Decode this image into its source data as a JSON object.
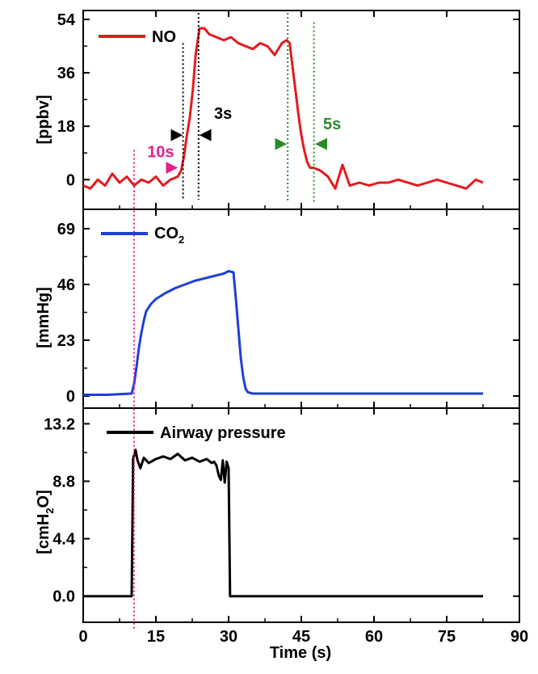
{
  "chart_data": {
    "type": "line",
    "shared_x": {
      "label": "Time (s)",
      "range": [
        0,
        90
      ],
      "ticks": [
        0,
        15,
        30,
        45,
        60,
        75,
        90
      ]
    },
    "panels": [
      {
        "id": "no",
        "ylabel": "[ppbv]",
        "ylim": [
          -10,
          57
        ],
        "yticks": [
          0,
          18,
          36,
          54
        ],
        "ytick_labels": [
          "0",
          "18",
          "36",
          "54"
        ],
        "series": {
          "name": "NO",
          "color": "#e41a1c",
          "x": [
            0,
            1.5,
            3,
            4.5,
            6,
            7.5,
            9,
            10.5,
            12,
            13.5,
            15,
            16.5,
            18,
            19.5,
            20.2,
            20.8,
            21.4,
            22,
            22.6,
            23.2,
            24,
            25,
            26,
            27.5,
            29,
            30.5,
            32,
            33.5,
            35,
            36.5,
            38,
            39.5,
            41,
            42,
            42.6,
            43.2,
            43.8,
            44.4,
            45,
            45.6,
            46.2,
            46.8,
            47.5,
            49,
            50.5,
            52,
            53.5,
            55,
            57,
            59,
            61,
            63,
            65,
            67,
            69,
            71,
            73,
            75,
            77,
            79,
            81,
            82.5
          ],
          "y": [
            -2,
            -3,
            0,
            -2,
            2,
            -1,
            1,
            -2,
            0,
            -1,
            1,
            -2,
            0,
            1,
            3,
            8,
            15,
            21,
            30,
            42,
            51,
            51,
            49,
            48,
            47,
            48,
            46,
            45,
            44,
            46,
            45,
            42,
            46,
            47,
            46,
            38,
            30,
            22,
            15,
            10,
            6,
            4,
            4,
            3,
            1,
            -3,
            5,
            -2,
            -1,
            -2,
            -1,
            -1,
            0,
            -1,
            -2,
            -1,
            0,
            -1,
            -2,
            -3,
            0,
            -1
          ]
        },
        "annotations": [
          {
            "text": "10s",
            "color": "#e91e8c"
          },
          {
            "text": "3s",
            "color": "#000000"
          },
          {
            "text": "5s",
            "color": "#2a8a2a"
          }
        ]
      },
      {
        "id": "co2",
        "ylabel": "[mmHg]",
        "ylim": [
          -5,
          77
        ],
        "yticks": [
          0,
          23,
          46,
          69
        ],
        "ytick_labels": [
          "0",
          "23",
          "46",
          "69"
        ],
        "series": {
          "name": "CO2",
          "color": "#1f3fd6",
          "x": [
            0,
            5,
            10,
            10.5,
            11,
            11.5,
            12,
            12.5,
            13,
            14,
            15,
            17,
            19,
            21,
            23,
            25,
            27,
            29,
            30,
            31,
            31.5,
            32,
            32.5,
            33,
            33.5,
            34,
            35,
            40,
            50,
            60,
            70,
            80,
            82.5
          ],
          "y": [
            0.5,
            0.5,
            1,
            5,
            12,
            20,
            26,
            31,
            35,
            38,
            40,
            42.5,
            44.5,
            46,
            47.5,
            48.5,
            49.5,
            50.5,
            51.5,
            51,
            40,
            28,
            16,
            8,
            3,
            1.5,
            1,
            1,
            1,
            1,
            1,
            1,
            1
          ]
        }
      },
      {
        "id": "airway",
        "ylabel": "[cmH2O]",
        "ylim": [
          -2,
          14.4
        ],
        "yticks": [
          0,
          4.4,
          8.8,
          13.2
        ],
        "ytick_labels": [
          "0.0",
          "4.4",
          "8.8",
          "13.2"
        ],
        "series": {
          "name": "Airway pressure",
          "color": "#000000",
          "x": [
            0,
            5,
            9.5,
            10,
            10.3,
            10.8,
            11.2,
            11.8,
            12.5,
            13.5,
            15,
            16.5,
            18,
            19.5,
            21,
            22.5,
            24,
            25.5,
            26.5,
            27,
            27.5,
            28,
            28.4,
            28.8,
            29.2,
            29.6,
            30,
            30.3,
            31,
            40,
            50,
            60,
            70,
            80,
            82.5
          ],
          "y": [
            0,
            0,
            0,
            0,
            10.5,
            11.2,
            10.4,
            9.8,
            10.6,
            10.2,
            10.5,
            10.7,
            10.5,
            10.9,
            10.4,
            10.6,
            10.3,
            10.5,
            10.2,
            10.3,
            10.0,
            9.2,
            8.9,
            10.4,
            8.7,
            10.3,
            9.8,
            0,
            0,
            0,
            0,
            0,
            0,
            0,
            0
          ]
        }
      }
    ]
  },
  "legend": {
    "no_label": "NO",
    "co2_label_main": "CO",
    "co2_label_sub": "2",
    "airway_label": "Airway pressure"
  },
  "axes": {
    "co2_ylabel": "[mmHg]",
    "no_ylabel": "[ppbv]",
    "airway_ylabel_pre": "[cmH",
    "airway_ylabel_sub": "2",
    "airway_ylabel_post": "O]",
    "xlabel": "Time (s)"
  }
}
